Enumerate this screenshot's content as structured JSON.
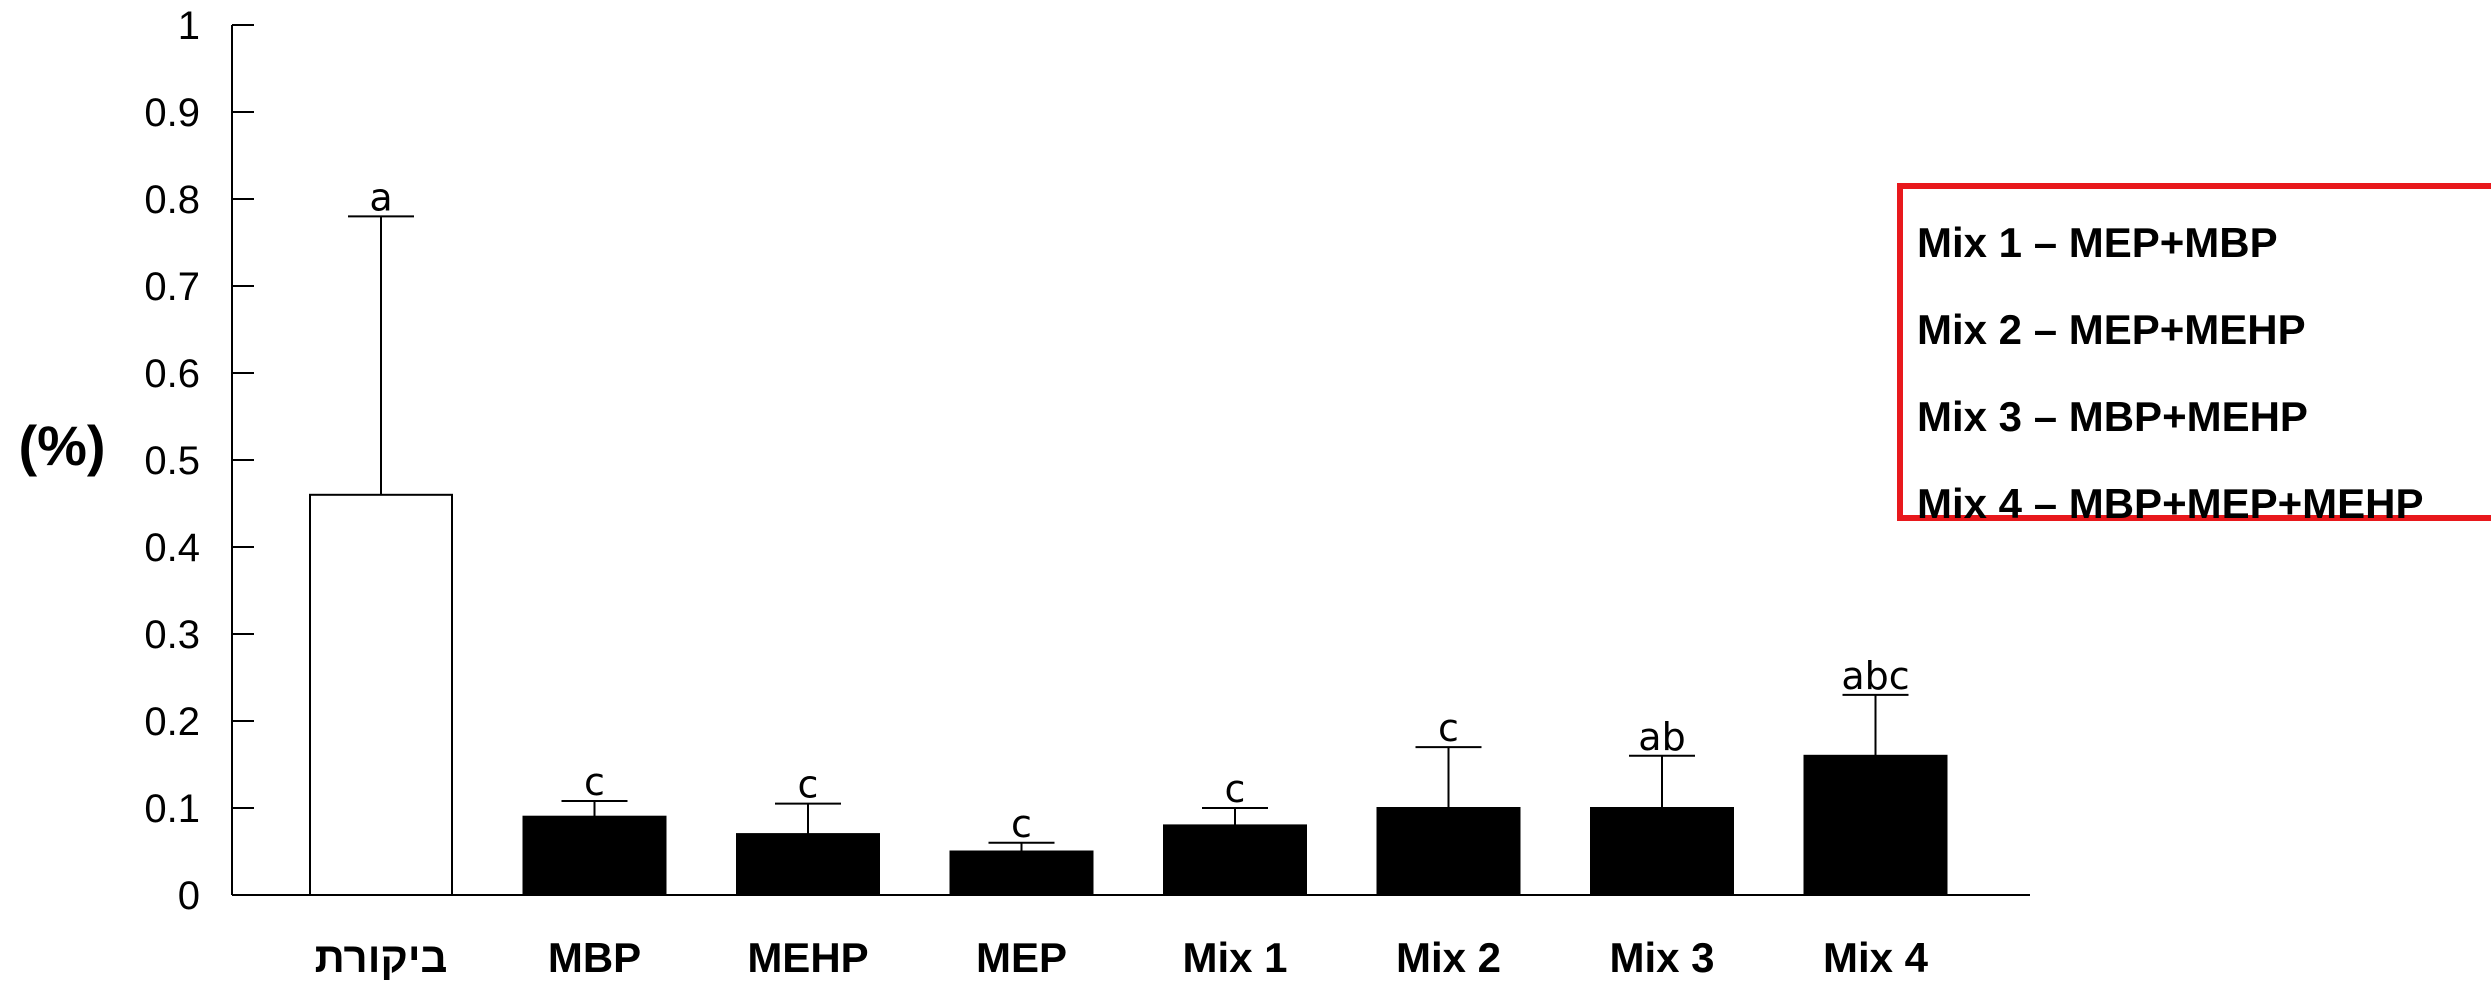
{
  "chart_data": {
    "type": "bar",
    "title": "",
    "xlabel": "",
    "ylabel": "(%)",
    "ylim": [
      0,
      1
    ],
    "yticks": [
      "0",
      "0.1",
      "0.2",
      "0.3",
      "0.4",
      "0.5",
      "0.6",
      "0.7",
      "0.8",
      "0.9",
      "1"
    ],
    "grid": false,
    "categories": [
      "ביקורת",
      "MBP",
      "MEHP",
      "MEP",
      "Mix 1",
      "Mix 2",
      "Mix 3",
      "Mix 4"
    ],
    "values": [
      0.46,
      0.09,
      0.07,
      0.05,
      0.08,
      0.1,
      0.1,
      0.16
    ],
    "error_upper": [
      0.78,
      0.108,
      0.105,
      0.06,
      0.1,
      0.17,
      0.16,
      0.23
    ],
    "significance": [
      "a",
      "c",
      "c",
      "c",
      "c",
      "c",
      "ab",
      "abc"
    ],
    "bar_fill": [
      "#ffffff",
      "#000000",
      "#000000",
      "#000000",
      "#000000",
      "#000000",
      "#000000",
      "#000000"
    ],
    "bar_stroke": "#000000"
  },
  "legend": {
    "border_color": "#e8181c",
    "lines": [
      "Mix 1 – MEP+MBP",
      "Mix 2 – MEP+MEHP",
      "Mix 3 – MBP+MEHP",
      "Mix 4 – MBP+MEP+MEHP"
    ]
  }
}
